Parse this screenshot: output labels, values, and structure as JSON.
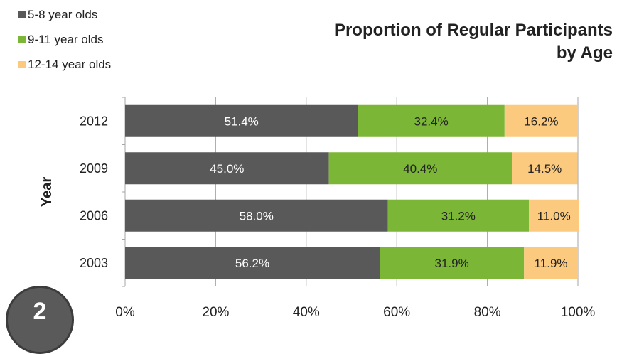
{
  "badge": {
    "text": "2",
    "color": "#5a5a5a"
  },
  "chart_data": {
    "type": "bar",
    "orientation": "horizontal",
    "stacked": true,
    "percent": true,
    "title": "Proportion of Regular Participants by Age",
    "title_lines": [
      "Proportion of Regular Participants",
      "by Age"
    ],
    "xlabel": "",
    "ylabel": "Year",
    "categories": [
      "2012",
      "2009",
      "2006",
      "2003"
    ],
    "series": [
      {
        "name": "5-8 year olds",
        "color": "#595959",
        "label_color": "#ffffff",
        "values": [
          51.4,
          45.0,
          58.0,
          56.2
        ]
      },
      {
        "name": "9-11 year olds",
        "color": "#7cb637",
        "label_color": "#222222",
        "values": [
          32.4,
          40.4,
          31.2,
          31.9
        ]
      },
      {
        "name": "12-14 year olds",
        "color": "#fcca7e",
        "label_color": "#222222",
        "values": [
          16.2,
          14.5,
          11.0,
          11.9
        ]
      }
    ],
    "xlim": [
      0,
      100
    ],
    "xticks": [
      "0%",
      "20%",
      "40%",
      "60%",
      "80%",
      "100%"
    ],
    "grid": true,
    "legend_position": "top-left"
  }
}
